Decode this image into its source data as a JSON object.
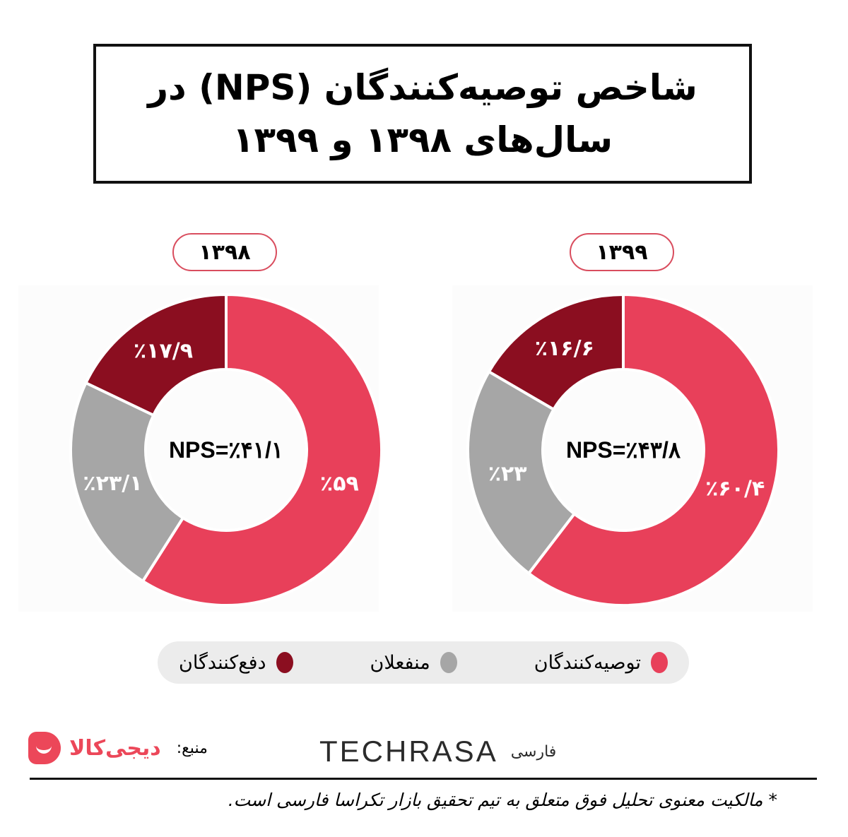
{
  "title": {
    "line1": "شاخص توصیه‌کنندگان (NPS) در",
    "line2": "سال‌های ۱۳۹۸ و ۱۳۹۹"
  },
  "colors": {
    "promoters": "#e8405a",
    "passives": "#a6a6a6",
    "detractors": "#8b0e20",
    "pill_border": "#d94d5e",
    "legend_bg": "#ececec",
    "brand_digikala": "#ec4759",
    "brand_techrasa_accent": "#e64a2e"
  },
  "charts": {
    "left": {
      "year": "۱۳۹۸",
      "nps_text": "NPS=٪۴۱/۱",
      "segments": [
        {
          "key": "promoters",
          "label": "٪۵۹"
        },
        {
          "key": "passives",
          "label": "٪۲۳/۱"
        },
        {
          "key": "detractors",
          "label": "٪۱۷/۹"
        }
      ]
    },
    "right": {
      "year": "۱۳۹۹",
      "nps_text": "NPS=٪۴۳/۸",
      "segments": [
        {
          "key": "promoters",
          "label": "٪۶۰/۴"
        },
        {
          "key": "passives",
          "label": "٪۲۳"
        },
        {
          "key": "detractors",
          "label": "٪۱۶/۶"
        }
      ]
    }
  },
  "legend": {
    "items": [
      {
        "key": "promoters",
        "label": "توصیه‌کنندگان",
        "icon": "circle-dot-icon"
      },
      {
        "key": "passives",
        "label": "منفعلان",
        "icon": "circle-dot-icon"
      },
      {
        "key": "detractors",
        "label": "دفع‌کنندگان",
        "icon": "circle-dot-icon"
      }
    ]
  },
  "footer": {
    "source_label": "منبع:",
    "source_brand": "دیجی‌کالا",
    "publisher_word": "TECHRASA",
    "publisher_fa": "فارسی",
    "footnote": "* مالکیت معنوی تحلیل فوق متعلق به تیم تحقیق بازار تکراسا فارسی است."
  },
  "chart_data": [
    {
      "type": "pie",
      "title": "۱۳۹۸",
      "subtitle": "NPS=41.1%",
      "categories": [
        "توصیه‌کنندگان",
        "منفعلان",
        "دفع‌کنندگان"
      ],
      "values": [
        59,
        23.1,
        17.9
      ],
      "unit": "%",
      "donut": true,
      "center_annotation": "NPS=٪۴۱/۱",
      "legend_position": "bottom"
    },
    {
      "type": "pie",
      "title": "۱۳۹۹",
      "subtitle": "NPS=43.8%",
      "categories": [
        "توصیه‌کنندگان",
        "منفعلان",
        "دفع‌کنندگان"
      ],
      "values": [
        60.4,
        23,
        16.6
      ],
      "unit": "%",
      "donut": true,
      "center_annotation": "NPS=٪۴۳/۸",
      "legend_position": "bottom"
    }
  ]
}
